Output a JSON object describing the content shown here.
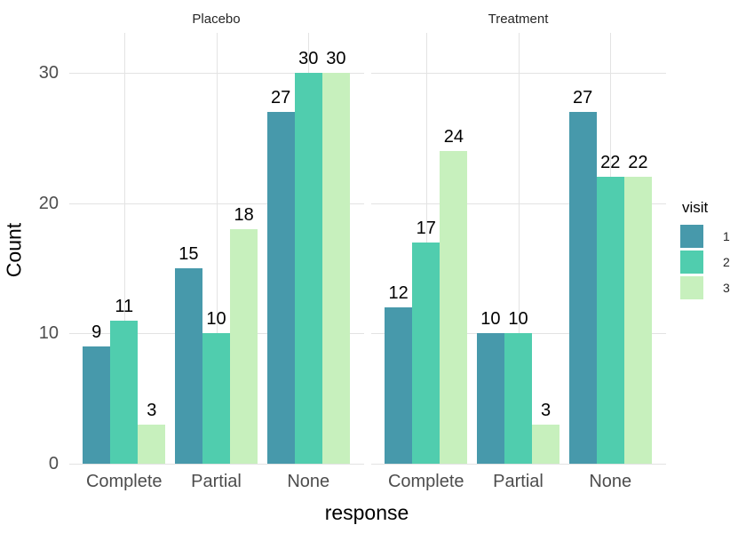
{
  "chart_data": {
    "type": "bar",
    "layout": "faceted-grouped-bar",
    "xlabel": "response",
    "ylabel": "Count",
    "y_ticks": [
      0,
      10,
      20,
      30
    ],
    "ylim": [
      0,
      33
    ],
    "grid": true,
    "bar_value_labels": true,
    "categories": [
      "Complete",
      "Partial",
      "None"
    ],
    "facets": [
      {
        "label": "Placebo",
        "series": [
          {
            "name": "1",
            "values": [
              9,
              15,
              27
            ]
          },
          {
            "name": "2",
            "values": [
              11,
              10,
              30
            ]
          },
          {
            "name": "3",
            "values": [
              3,
              18,
              30
            ]
          }
        ]
      },
      {
        "label": "Treatment",
        "series": [
          {
            "name": "1",
            "values": [
              12,
              10,
              27
            ]
          },
          {
            "name": "2",
            "values": [
              17,
              10,
              22
            ]
          },
          {
            "name": "3",
            "values": [
              24,
              3,
              22
            ]
          }
        ]
      }
    ],
    "legend": {
      "title": "visit",
      "position": "right-center",
      "entries": [
        {
          "label": "1",
          "color": "#4799ab"
        },
        {
          "label": "2",
          "color": "#50cdae"
        },
        {
          "label": "3",
          "color": "#c7f0bd"
        }
      ]
    },
    "colors": {
      "background": "#ffffff",
      "gridline": "#e3e3e3",
      "axis_tick_text": "#4d4d4d",
      "strip_text": "#262626",
      "bar_label_text": "#000000"
    }
  }
}
